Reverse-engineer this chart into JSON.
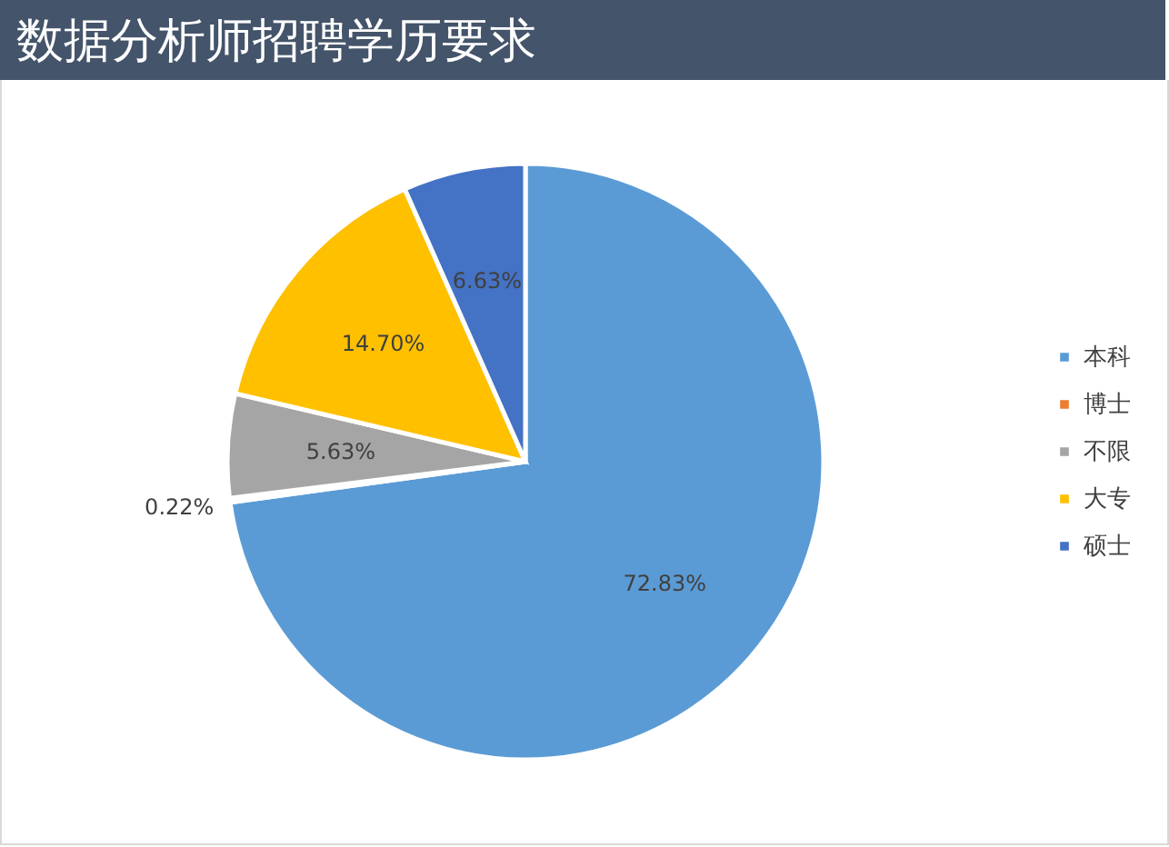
{
  "chart_data": {
    "type": "pie",
    "title": "数据分析师招聘学历要求",
    "categories": [
      "本科",
      "博士",
      "不限",
      "大专",
      "硕士"
    ],
    "values": [
      72.83,
      0.22,
      5.63,
      14.7,
      6.63
    ],
    "value_labels": [
      "72.83%",
      "0.22%",
      "5.63%",
      "14.70%",
      "6.63%"
    ],
    "colors": [
      "#5b9bd5",
      "#ed7d31",
      "#a5a5a5",
      "#ffc000",
      "#4472c4"
    ],
    "legend": "right"
  }
}
